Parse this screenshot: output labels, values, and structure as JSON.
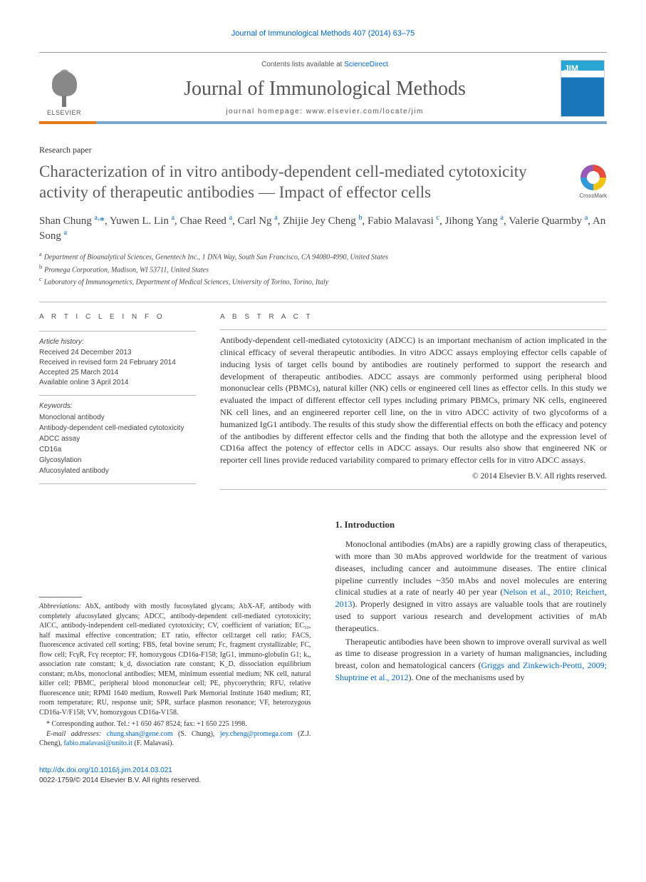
{
  "journal_ref": "Journal of Immunological Methods 407 (2014) 63–75",
  "masthead": {
    "contents_prefix": "Contents lists available at ",
    "contents_link": "ScienceDirect",
    "journal_title": "Journal of Immunological Methods",
    "homepage_label": "journal homepage: www.elsevier.com/locate/jim",
    "elsevier_label": "ELSEVIER",
    "colors": {
      "orange_bar": "#e67817",
      "blue_bar": "#7aa8cc",
      "link_blue": "#0066cc"
    }
  },
  "paper_type": "Research paper",
  "title": "Characterization of in vitro antibody-dependent cell-mediated cytotoxicity activity of therapeutic antibodies — Impact of effector cells",
  "crossmark_label": "CrossMark",
  "authors_html": "Shan Chung <sup>a,</sup><span class='star'>*</span>, Yuwen L. Lin <sup>a</sup>, Chae Reed <sup>a</sup>, Carl Ng <sup>a</sup>, Zhijie Jey Cheng <sup>b</sup>, Fabio Malavasi <sup>c</sup>, Jihong Yang <sup>a</sup>, Valerie Quarmby <sup>a</sup>, An Song <sup>a</sup>",
  "affiliations": [
    {
      "sup": "a",
      "text": "Department of Bioanalytical Sciences, Genentech Inc., 1 DNA Way, South San Francisco, CA 94080-4990, United States"
    },
    {
      "sup": "b",
      "text": "Promega Corporation, Madison, WI 53711, United States"
    },
    {
      "sup": "c",
      "text": "Laboratory of Immunogenetics, Department of Medical Sciences, University of Torino, Torino, Italy"
    }
  ],
  "article_info": {
    "heading": "A R T I C L E   I N F O",
    "history_label": "Article history:",
    "history": [
      "Received 24 December 2013",
      "Received in revised form 24 February 2014",
      "Accepted 25 March 2014",
      "Available online 3 April 2014"
    ],
    "keywords_label": "Keywords:",
    "keywords": [
      "Monoclonal antibody",
      "Antibody-dependent cell-mediated cytotoxicity",
      "ADCC assay",
      "CD16a",
      "Glycosylation",
      "Afucosylated antibody"
    ]
  },
  "abstract": {
    "heading": "A B S T R A C T",
    "text": "Antibody-dependent cell-mediated cytotoxicity (ADCC) is an important mechanism of action implicated in the clinical efficacy of several therapeutic antibodies. In vitro ADCC assays employing effector cells capable of inducing lysis of target cells bound by antibodies are routinely performed to support the research and development of therapeutic antibodies. ADCC assays are commonly performed using peripheral blood mononuclear cells (PBMCs), natural killer (NK) cells or engineered cell lines as effector cells. In this study we evaluated the impact of different effector cell types including primary PBMCs, primary NK cells, engineered NK cell lines, and an engineered reporter cell line, on the in vitro ADCC activity of two glycoforms of a humanized IgG1 antibody. The results of this study show the differential effects on both the efficacy and potency of the antibodies by different effector cells and the finding that both the allotype and the expression level of CD16a affect the potency of effector cells in ADCC assays. Our results also show that engineered NK or reporter cell lines provide reduced variability compared to primary effector cells for in vitro ADCC assays.",
    "copyright": "© 2014 Elsevier B.V. All rights reserved."
  },
  "left_column": {
    "abbreviations_label": "Abbreviations:",
    "abbreviations_text": " AbX, antibody with mostly fucosylated glycans; AbX-AF, antibody with completely afucosylated glycans; ADCC, antibody-dependent cell-mediated cytotoxicity; AICC, antibody-independent cell-mediated cytotoxicity; CV, coefficient of variation; EC₅₀, half maximal effective concentration; ET ratio, effector cell:target cell ratio; FACS, fluorescence activated cell sorting; FBS, fetal bovine serum; Fc, fragment crystallizable; FC, flow cell; FcγR, Fcγ receptor; FF, homozygous CD16a-F158; IgG1, immuno-globulin G1; kₐ, association rate constant; k_d, dissociation rate constant; K_D, dissociation equilibrium constant; mAbs, monoclonal antibodies; MEM, minimum essential medium; NK cell, natural killer cell; PBMC, peripheral blood mononuclear cell; PE, phycoerythrin; RFU, relative fluorescence unit; RPMI 1640 medium, Roswell Park Memorial Institute 1640 medium; RT, room temperature; RU, response unit; SPR, surface plasmon resonance; VF, heterozygous CD16a-V/F158; VV, homozygous CD16a-V158.",
    "corresponding": "* Corresponding author. Tel.: +1 650 467 8524; fax: +1 650 225 1998.",
    "email_label": "E-mail addresses:",
    "emails_html": " <a>chung.shan@gene.com</a> (S. Chung), <a>jey.cheng@promega.com</a> (Z.J. Cheng), <a>fabio.malavasi@unito.it</a> (F. Malavasi)."
  },
  "right_column": {
    "section_heading": "1. Introduction",
    "para1_html": "Monoclonal antibodies (mAbs) are a rapidly growing class of therapeutics, with more than 30 mAbs approved worldwide for the treatment of various diseases, including cancer and autoimmune diseases. The entire clinical pipeline currently includes ~350 mAbs and novel molecules are entering clinical studies at a rate of nearly 40 per year (<a>Nelson et al., 2010; Reichert, 2013</a>). Properly designed in vitro assays are valuable tools that are routinely used to support various research and development activities of mAb therapeutics.",
    "para2_html": "Therapeutic antibodies have been shown to improve overall survival as well as time to disease progression in a variety of human malignancies, including breast, colon and hematological cancers (<a>Griggs and Zinkewich-Peotti, 2009; Shuptrine et al., 2012</a>). One of the mechanisms used by"
  },
  "footer": {
    "doi_url": "http://dx.doi.org/10.1016/j.jim.2014.03.021",
    "issn_line": "0022-1759/© 2014 Elsevier B.V. All rights reserved."
  }
}
